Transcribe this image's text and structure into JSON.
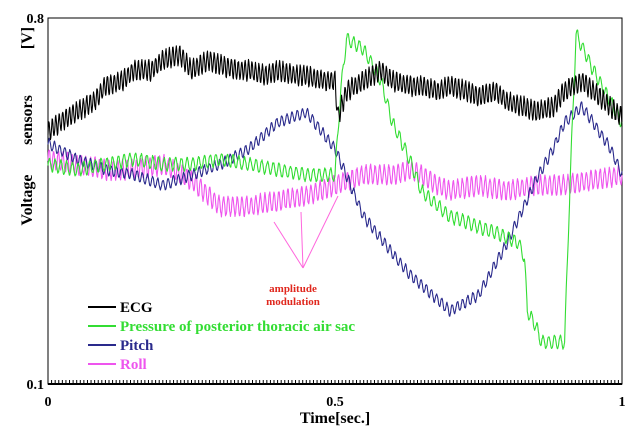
{
  "chart_data": {
    "type": "line",
    "xlabel": "Time[sec.]",
    "ylabel_parts": [
      "Voltage",
      "sensors",
      "[V]"
    ],
    "xlim": [
      0,
      1
    ],
    "ylim": [
      0.1,
      0.8
    ],
    "x_ticks": [
      "0",
      "0.5",
      "1"
    ],
    "y_ticks": [
      "0.1",
      "0.8"
    ],
    "legend_position": "bottom-left",
    "annotation": {
      "lines": [
        "amplitude",
        "modulation"
      ],
      "color": "#e0281e",
      "arrow_color": "#ff66dd"
    },
    "series": [
      {
        "name": "ECG",
        "color": "#000000",
        "osc_amp": 0.018,
        "osc_period": 0.006,
        "x": [
          0,
          0.02,
          0.05,
          0.08,
          0.1,
          0.13,
          0.15,
          0.18,
          0.2,
          0.23,
          0.25,
          0.28,
          0.3,
          0.33,
          0.35,
          0.38,
          0.4,
          0.43,
          0.45,
          0.48,
          0.5,
          0.505,
          0.52,
          0.55,
          0.58,
          0.6,
          0.63,
          0.65,
          0.68,
          0.7,
          0.73,
          0.75,
          0.78,
          0.8,
          0.83,
          0.85,
          0.88,
          0.9,
          0.93,
          0.95,
          0.98,
          1
        ],
        "y": [
          0.58,
          0.6,
          0.62,
          0.64,
          0.67,
          0.68,
          0.7,
          0.7,
          0.72,
          0.73,
          0.7,
          0.72,
          0.71,
          0.7,
          0.7,
          0.69,
          0.7,
          0.69,
          0.69,
          0.68,
          0.68,
          0.61,
          0.66,
          0.68,
          0.7,
          0.68,
          0.67,
          0.67,
          0.66,
          0.67,
          0.66,
          0.65,
          0.66,
          0.64,
          0.63,
          0.62,
          0.63,
          0.66,
          0.68,
          0.66,
          0.63,
          0.61
        ]
      },
      {
        "name": "Pressure of posterior thoracic air sac",
        "color": "#33dd33",
        "osc_amp": 0.012,
        "osc_period": 0.01,
        "x": [
          0,
          0.05,
          0.1,
          0.15,
          0.2,
          0.25,
          0.3,
          0.35,
          0.4,
          0.45,
          0.5,
          0.51,
          0.52,
          0.55,
          0.58,
          0.6,
          0.63,
          0.65,
          0.68,
          0.7,
          0.73,
          0.75,
          0.78,
          0.8,
          0.82,
          0.83,
          0.835,
          0.85,
          0.86,
          0.9,
          0.91,
          0.92,
          0.95,
          0.98,
          1
        ],
        "y": [
          0.52,
          0.51,
          0.52,
          0.53,
          0.52,
          0.52,
          0.53,
          0.52,
          0.51,
          0.5,
          0.5,
          0.66,
          0.76,
          0.74,
          0.68,
          0.6,
          0.53,
          0.47,
          0.44,
          0.42,
          0.41,
          0.4,
          0.39,
          0.38,
          0.37,
          0.34,
          0.24,
          0.21,
          0.18,
          0.18,
          0.5,
          0.77,
          0.7,
          0.64,
          0.6
        ]
      },
      {
        "name": "Pitch",
        "color": "#2a2a8c",
        "osc_amp": 0.01,
        "osc_period": 0.009,
        "x": [
          0,
          0.05,
          0.1,
          0.15,
          0.2,
          0.25,
          0.3,
          0.35,
          0.4,
          0.45,
          0.5,
          0.55,
          0.6,
          0.63,
          0.65,
          0.68,
          0.7,
          0.75,
          0.8,
          0.85,
          0.88,
          0.9,
          0.93,
          0.95,
          0.98,
          1
        ],
        "y": [
          0.56,
          0.53,
          0.51,
          0.5,
          0.48,
          0.5,
          0.52,
          0.55,
          0.6,
          0.62,
          0.55,
          0.42,
          0.35,
          0.31,
          0.29,
          0.26,
          0.24,
          0.27,
          0.37,
          0.49,
          0.55,
          0.6,
          0.63,
          0.6,
          0.55,
          0.5
        ]
      },
      {
        "name": "Roll",
        "color": "#ee55ee",
        "osc_amp": 0.018,
        "osc_period": 0.008,
        "x": [
          0,
          0.05,
          0.1,
          0.15,
          0.2,
          0.25,
          0.3,
          0.35,
          0.4,
          0.45,
          0.5,
          0.55,
          0.6,
          0.63,
          0.65,
          0.68,
          0.7,
          0.75,
          0.8,
          0.85,
          0.9,
          0.95,
          1
        ],
        "y": [
          0.53,
          0.52,
          0.51,
          0.51,
          0.52,
          0.49,
          0.44,
          0.44,
          0.45,
          0.46,
          0.48,
          0.5,
          0.5,
          0.51,
          0.5,
          0.48,
          0.47,
          0.48,
          0.47,
          0.48,
          0.48,
          0.49,
          0.5
        ]
      }
    ]
  }
}
